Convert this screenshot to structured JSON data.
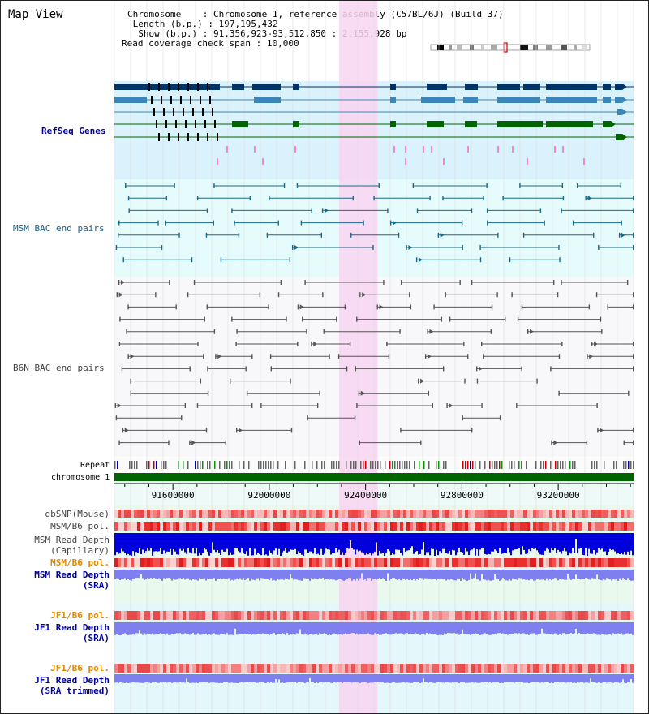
{
  "header": {
    "title": "Map View",
    "info_lines": [
      {
        "label": "Chromosome",
        "value": "Chromosome 1, reference assembly (C57BL/6J) (Build 37)"
      },
      {
        "label": "Length (b.p.)",
        "value": "197,195,432"
      },
      {
        "label": "Show (b.p.)",
        "value": "91,356,923-93,512,850 : 2,155,928 bp"
      },
      {
        "label": "Read coverage check span",
        "value": "10,000"
      }
    ]
  },
  "tracks": {
    "refseq": "RefSeq Genes",
    "msm_bac": "MSM BAC end pairs",
    "b6n_bac": "B6N BAC end pairs",
    "repeat": "Repeat",
    "chromosome": "chromosome 1",
    "dbsnp": "dbSNP(Mouse)",
    "msm_b6_pol_1": "MSM/B6 pol.",
    "msm_depth_cap": "MSM Read Depth",
    "msm_depth_cap_sub": "(Capillary)",
    "msm_b6_pol_2": "MSM/B6 pol.",
    "msm_depth_sra": "MSM Read Depth",
    "msm_depth_sra_sub": "(SRA)",
    "jf1_pol_1": "JF1/B6 pol.",
    "jf1_depth_sra": "JF1 Read Depth",
    "jf1_depth_sra_sub": "(SRA)",
    "jf1_pol_2": "JF1/B6 pol.",
    "jf1_depth_trim": "JF1 Read Depth",
    "jf1_depth_trim_sub": "(SRA trimmed)"
  },
  "axis": {
    "ticks": [
      "91600000",
      "92000000",
      "92400000",
      "92800000",
      "93200000"
    ],
    "tick_values": [
      91600000,
      92000000,
      92400000,
      92800000,
      93200000
    ],
    "range": [
      91356923,
      93512850
    ]
  },
  "highlight": {
    "start": 92290000,
    "end": 92450000
  },
  "colors": {
    "refseq_bg": "#d9f2fb",
    "msm_bg": "#e6fbfb",
    "b6n_bg": "#f8f8fa",
    "highlight": "#f9d5f2",
    "gene_dark": "#003366",
    "gene_mid": "#3a86b8",
    "gene_green": "#006400",
    "msm_line": "#1a6b8a",
    "b6n_line": "#555555",
    "chrom_bar": "#006400",
    "depth_blue": "#0000dd",
    "depth_light": "#7f7ff0",
    "label_blue": "#000099",
    "label_orange": "#dd8800"
  }
}
